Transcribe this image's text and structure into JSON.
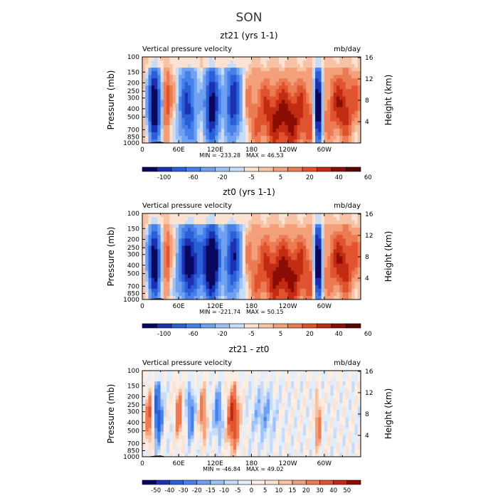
{
  "figure": {
    "title": "SON"
  },
  "chart_data": [
    {
      "type": "heatmap",
      "title": "zt21 (yrs 1-1)",
      "left_label": "Vertical pressure velocity",
      "right_label": "mb/day",
      "ylabel": "Pressure (mb)",
      "ylabel_right": "Height (km)",
      "x_ticks": [
        "0",
        "60E",
        "120E",
        "180",
        "120W",
        "60W"
      ],
      "x_tick_positions": [
        0,
        60,
        120,
        180,
        240,
        300
      ],
      "xlim": [
        0,
        360
      ],
      "y_ticks": [
        "100",
        "150",
        "200",
        "250",
        "300",
        "400",
        "500",
        "700",
        "850",
        "1000"
      ],
      "y_tick_values": [
        100,
        150,
        200,
        250,
        300,
        400,
        500,
        700,
        850,
        1000
      ],
      "ylim": [
        1000,
        100
      ],
      "y_scale": "log",
      "height_ticks": [
        "4",
        "8",
        "12",
        "16"
      ],
      "height_tick_values": [
        4,
        8,
        12,
        16
      ],
      "min_label": "MIN = -233.28",
      "max_label": "MAX =  46.53",
      "colorbar_labels": [
        "-100",
        "-60",
        "-20",
        "-5",
        "5",
        "20",
        "40",
        "60"
      ],
      "colorbar_colors": [
        "#08085e",
        "#1c30b4",
        "#2a5fd6",
        "#4680ea",
        "#6fa0f1",
        "#9ec1f6",
        "#c8dcf9",
        "#fbe2d2",
        "#f8c2a5",
        "#f3a07b",
        "#ec7a52",
        "#e0532f",
        "#c22a12",
        "#8b0d04",
        "#5c0500"
      ],
      "field": "zt21"
    },
    {
      "type": "heatmap",
      "title": "zt0 (yrs 1-1)",
      "left_label": "Vertical pressure velocity",
      "right_label": "mb/day",
      "ylabel": "Pressure (mb)",
      "ylabel_right": "Height (km)",
      "x_ticks": [
        "0",
        "60E",
        "120E",
        "180",
        "120W",
        "60W"
      ],
      "x_tick_positions": [
        0,
        60,
        120,
        180,
        240,
        300
      ],
      "xlim": [
        0,
        360
      ],
      "y_ticks": [
        "100",
        "150",
        "200",
        "250",
        "300",
        "400",
        "500",
        "700",
        "850",
        "1000"
      ],
      "y_tick_values": [
        100,
        150,
        200,
        250,
        300,
        400,
        500,
        700,
        850,
        1000
      ],
      "ylim": [
        1000,
        100
      ],
      "y_scale": "log",
      "height_ticks": [
        "4",
        "8",
        "12",
        "16"
      ],
      "height_tick_values": [
        4,
        8,
        12,
        16
      ],
      "min_label": "MIN = -221.74",
      "max_label": "MAX =  50.15",
      "colorbar_labels": [
        "-100",
        "-60",
        "-20",
        "-5",
        "5",
        "20",
        "40",
        "60"
      ],
      "colorbar_colors": [
        "#08085e",
        "#1c30b4",
        "#2a5fd6",
        "#4680ea",
        "#6fa0f1",
        "#9ec1f6",
        "#c8dcf9",
        "#fbe2d2",
        "#f8c2a5",
        "#f3a07b",
        "#ec7a52",
        "#e0532f",
        "#c22a12",
        "#8b0d04",
        "#5c0500"
      ],
      "field": "zt0"
    },
    {
      "type": "heatmap",
      "title": "zt21 - zt0",
      "left_label": "Vertical pressure velocity",
      "right_label": "mb/day",
      "ylabel": "Pressure (mb)",
      "ylabel_right": "Height (km)",
      "x_ticks": [
        "0",
        "60E",
        "120E",
        "180",
        "120W",
        "60W"
      ],
      "x_tick_positions": [
        0,
        60,
        120,
        180,
        240,
        300
      ],
      "xlim": [
        0,
        360
      ],
      "y_ticks": [
        "100",
        "150",
        "200",
        "250",
        "300",
        "400",
        "500",
        "700",
        "850",
        "1000"
      ],
      "y_tick_values": [
        100,
        150,
        200,
        250,
        300,
        400,
        500,
        700,
        850,
        1000
      ],
      "ylim": [
        1000,
        100
      ],
      "y_scale": "log",
      "height_ticks": [
        "4",
        "8",
        "12",
        "16"
      ],
      "height_tick_values": [
        4,
        8,
        12,
        16
      ],
      "min_label": "MIN = -46.84",
      "max_label": "MAX =  49.02",
      "colorbar_labels": [
        "-50",
        "-40",
        "-30",
        "-20",
        "-15",
        "-10",
        "-5",
        "0",
        "5",
        "10",
        "15",
        "20",
        "30",
        "40",
        "50"
      ],
      "colorbar_colors": [
        "#08085e",
        "#1c30b4",
        "#2a5fd6",
        "#4680ea",
        "#6fa0f1",
        "#9ec1f6",
        "#c8dcf9",
        "#e4eefb",
        "#fdeee4",
        "#fbe2d2",
        "#f8c2a5",
        "#f3a07b",
        "#ec7a52",
        "#e0532f",
        "#c22a12",
        "#8b0d04"
      ],
      "field": "diff"
    }
  ]
}
